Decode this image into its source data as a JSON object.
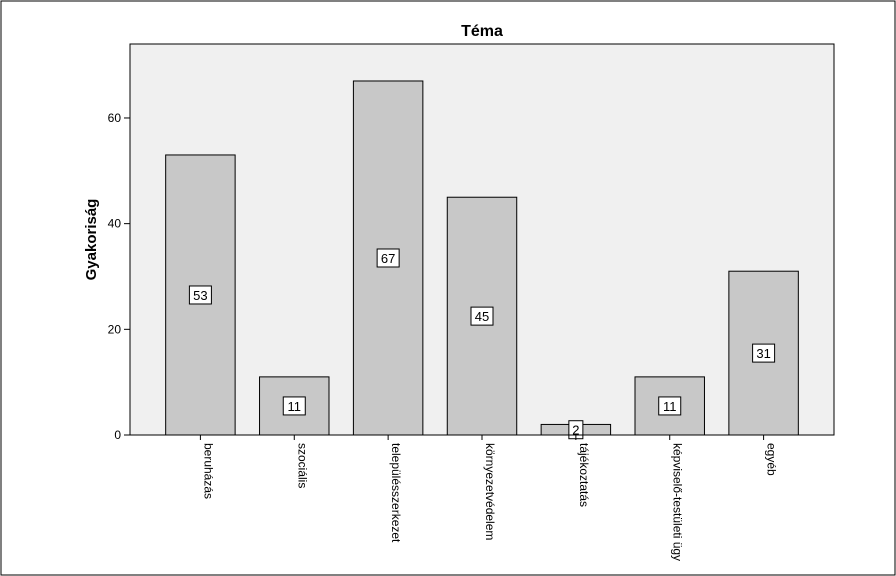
{
  "chart_data": {
    "type": "bar",
    "title": "Téma",
    "xlabel": "",
    "ylabel": "Gyakoriság",
    "categories": [
      "beruházás",
      "szociális",
      "településszerkezet",
      "környezetvédelem",
      "tájékoztatás",
      "képviselő-testületi ügy",
      "egyéb"
    ],
    "values": [
      53,
      11,
      67,
      45,
      2,
      11,
      31
    ],
    "data_labels": [
      "53",
      "11",
      "67",
      "45",
      "2",
      "11",
      "31"
    ],
    "y_ticks": [
      0,
      20,
      40,
      60
    ],
    "y_tick_labels": [
      "0",
      "20",
      "40",
      "60"
    ],
    "ylim": [
      0,
      74
    ],
    "grid": false,
    "legend": "none",
    "colors": {
      "plot_background": "#f0f0f0",
      "bar_fill": "#c8c8c8",
      "bar_stroke": "#000000",
      "label_box": "#ffffff",
      "text": "#000000"
    }
  }
}
